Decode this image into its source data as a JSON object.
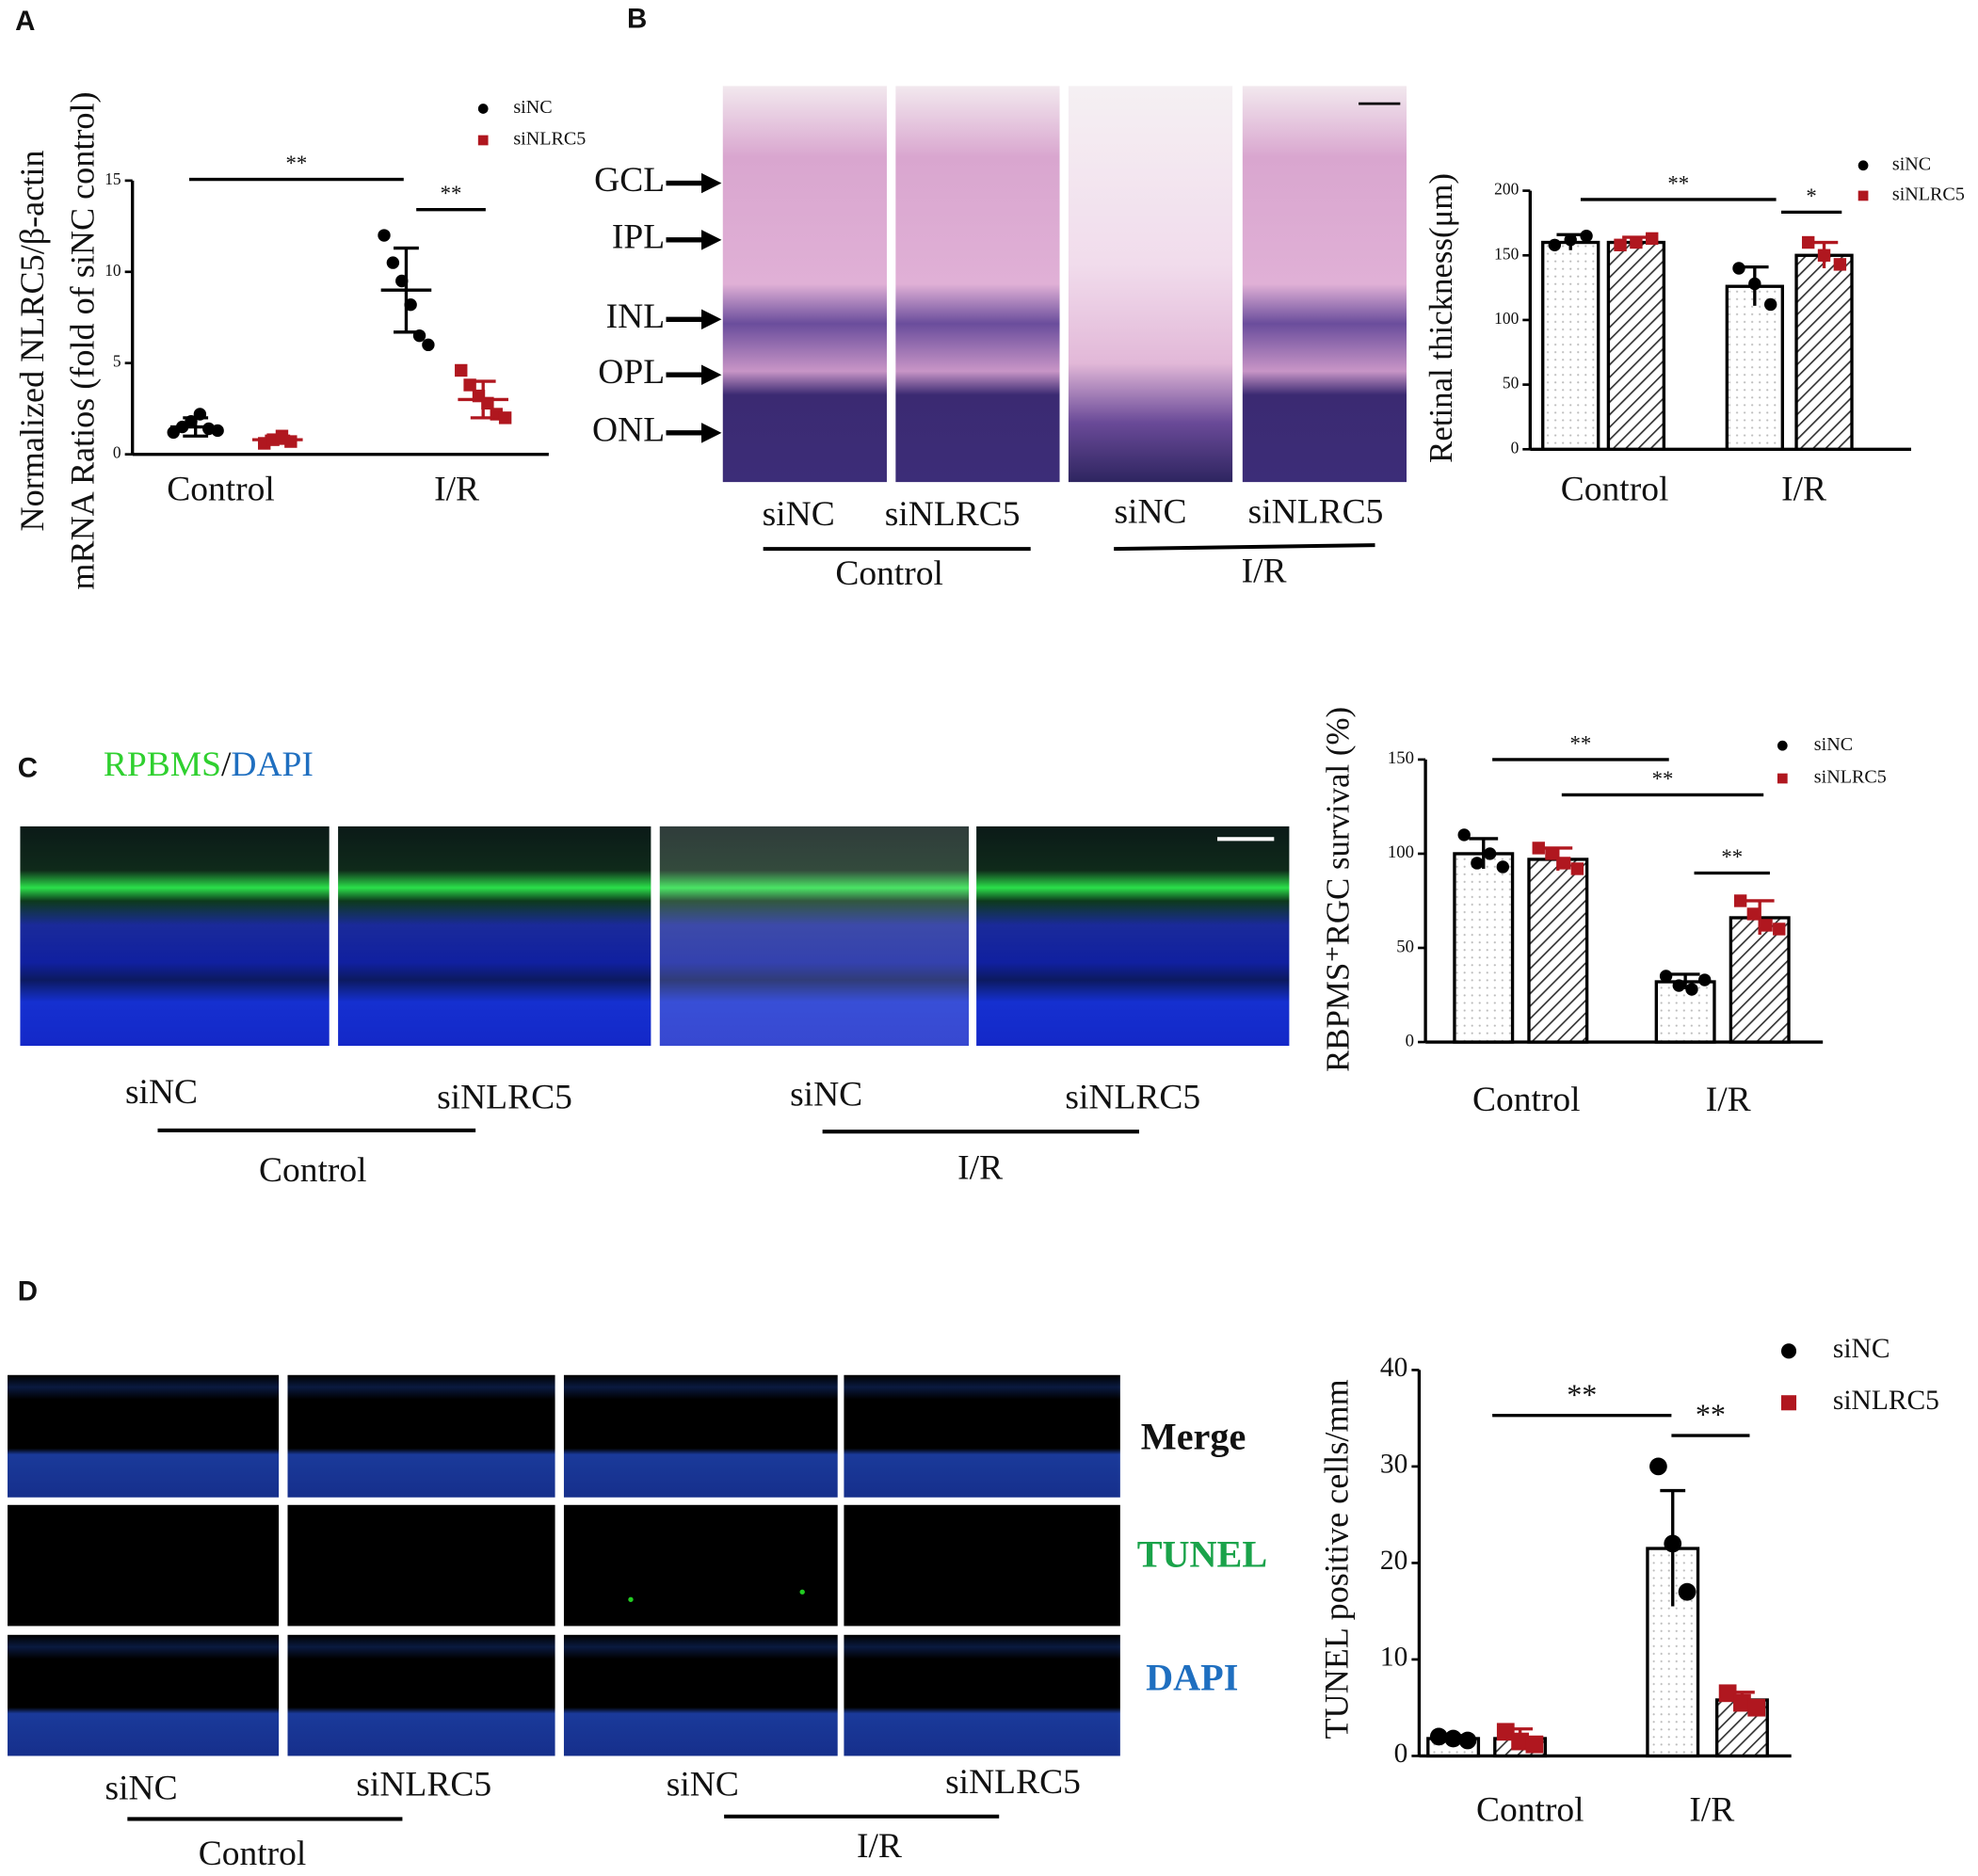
{
  "panel_labels": [
    "A",
    "B",
    "C",
    "D"
  ],
  "histology": {
    "layers": [
      "GCL",
      "IPL",
      "INL",
      "OPL",
      "ONL"
    ],
    "groups": [
      {
        "name": "Control",
        "conditions": [
          "siNC",
          "siNLRC5"
        ]
      },
      {
        "name": "I/R",
        "conditions": [
          "siNC",
          "siNLRC5"
        ]
      }
    ]
  },
  "immunofluorescence": {
    "stain_title": [
      "RPBMS",
      "/",
      "DAPI"
    ],
    "groups": [
      {
        "name": "Control",
        "conditions": [
          "siNC",
          "siNLRC5"
        ]
      },
      {
        "name": "I/R",
        "conditions": [
          "siNC",
          "siNLRC5"
        ]
      }
    ]
  },
  "tunel": {
    "rows": [
      "Merge",
      "TUNEL",
      "DAPI"
    ],
    "groups": [
      {
        "name": "Control",
        "conditions": [
          "siNC",
          "siNLRC5"
        ]
      },
      {
        "name": "I/R",
        "conditions": [
          "siNC",
          "siNLRC5"
        ]
      }
    ]
  },
  "chart_data": [
    {
      "type": "dot",
      "y_label": [
        "Normalized NLRC5/β-actin",
        "mRNA Ratios (fold of siNC control)"
      ],
      "categories": [
        "Control",
        "I/R"
      ],
      "ylim": [
        0,
        15
      ],
      "yticks": [
        0,
        5,
        10,
        15
      ],
      "series": [
        {
          "name": "siNC",
          "color": "#000000",
          "marker": "circle",
          "values": [
            1.5,
            9
          ],
          "errors": [
            0.5,
            2.3
          ],
          "points": [
            [
              1.2,
              1.5,
              1.8,
              2.2,
              1.4,
              1.3
            ],
            [
              12,
              10.5,
              9.5,
              8.2,
              6.5,
              6
            ]
          ]
        },
        {
          "name": "siNLRC5",
          "color": "#b0171f",
          "marker": "square",
          "values": [
            0.8,
            3
          ],
          "errors": [
            0.2,
            1
          ],
          "points": [
            [
              0.6,
              0.8,
              1.0,
              0.7
            ],
            [
              4.6,
              3.8,
              3.2,
              2.8,
              2.2,
              2.0
            ]
          ]
        }
      ],
      "annotations": [
        "**",
        "**"
      ]
    },
    {
      "type": "bar",
      "y_label": [
        "Retinal thickness(μm)"
      ],
      "categories": [
        "Control",
        "I/R"
      ],
      "ylim": [
        0,
        200
      ],
      "yticks": [
        0,
        50,
        100,
        150,
        200
      ],
      "series": [
        {
          "name": "siNC",
          "color": "#000000",
          "marker": "circle",
          "values": [
            160,
            126
          ],
          "errors": [
            6,
            15
          ],
          "points": [
            [
              158,
              162,
              165
            ],
            [
              140,
              128,
              112
            ]
          ]
        },
        {
          "name": "siNLRC5",
          "color": "#b0171f",
          "marker": "square",
          "values": [
            160,
            150
          ],
          "errors": [
            4,
            10
          ],
          "points": [
            [
              158,
              160,
              163
            ],
            [
              160,
              150,
              143
            ]
          ]
        }
      ],
      "annotations": [
        "**",
        "*"
      ]
    },
    {
      "type": "bar",
      "y_label": [
        "RBPMS⁺RGC survival (%)"
      ],
      "categories": [
        "Control",
        "I/R"
      ],
      "ylim": [
        0,
        150
      ],
      "yticks": [
        0,
        50,
        100,
        150
      ],
      "series": [
        {
          "name": "siNC",
          "color": "#000000",
          "marker": "circle",
          "values": [
            100,
            32
          ],
          "errors": [
            8,
            4
          ],
          "points": [
            [
              110,
              95,
              100,
              93
            ],
            [
              35,
              30,
              28,
              33
            ]
          ]
        },
        {
          "name": "siNLRC5",
          "color": "#b0171f",
          "marker": "square",
          "values": [
            97,
            66
          ],
          "errors": [
            6,
            9
          ],
          "points": [
            [
              103,
              100,
              95,
              92
            ],
            [
              75,
              68,
              62,
              60
            ]
          ]
        }
      ],
      "annotations": [
        "**",
        "**",
        "**"
      ]
    },
    {
      "type": "bar",
      "y_label": [
        "TUNEL positive cells/mm"
      ],
      "categories": [
        "Control",
        "I/R"
      ],
      "ylim": [
        0,
        40
      ],
      "yticks": [
        0,
        10,
        20,
        30,
        40
      ],
      "series": [
        {
          "name": "siNC",
          "color": "#000000",
          "marker": "circle",
          "values": [
            1.8,
            21.5
          ],
          "errors": [
            0.3,
            6
          ],
          "points": [
            [
              2,
              1.8,
              1.6
            ],
            [
              30,
              22,
              17
            ]
          ]
        },
        {
          "name": "siNLRC5",
          "color": "#b0171f",
          "marker": "square",
          "values": [
            1.8,
            5.8
          ],
          "errors": [
            1,
            0.8
          ],
          "points": [
            [
              2.5,
              1.5,
              1.2
            ],
            [
              6.5,
              5.5,
              5
            ]
          ]
        }
      ],
      "annotations": [
        "**",
        "**"
      ]
    }
  ]
}
